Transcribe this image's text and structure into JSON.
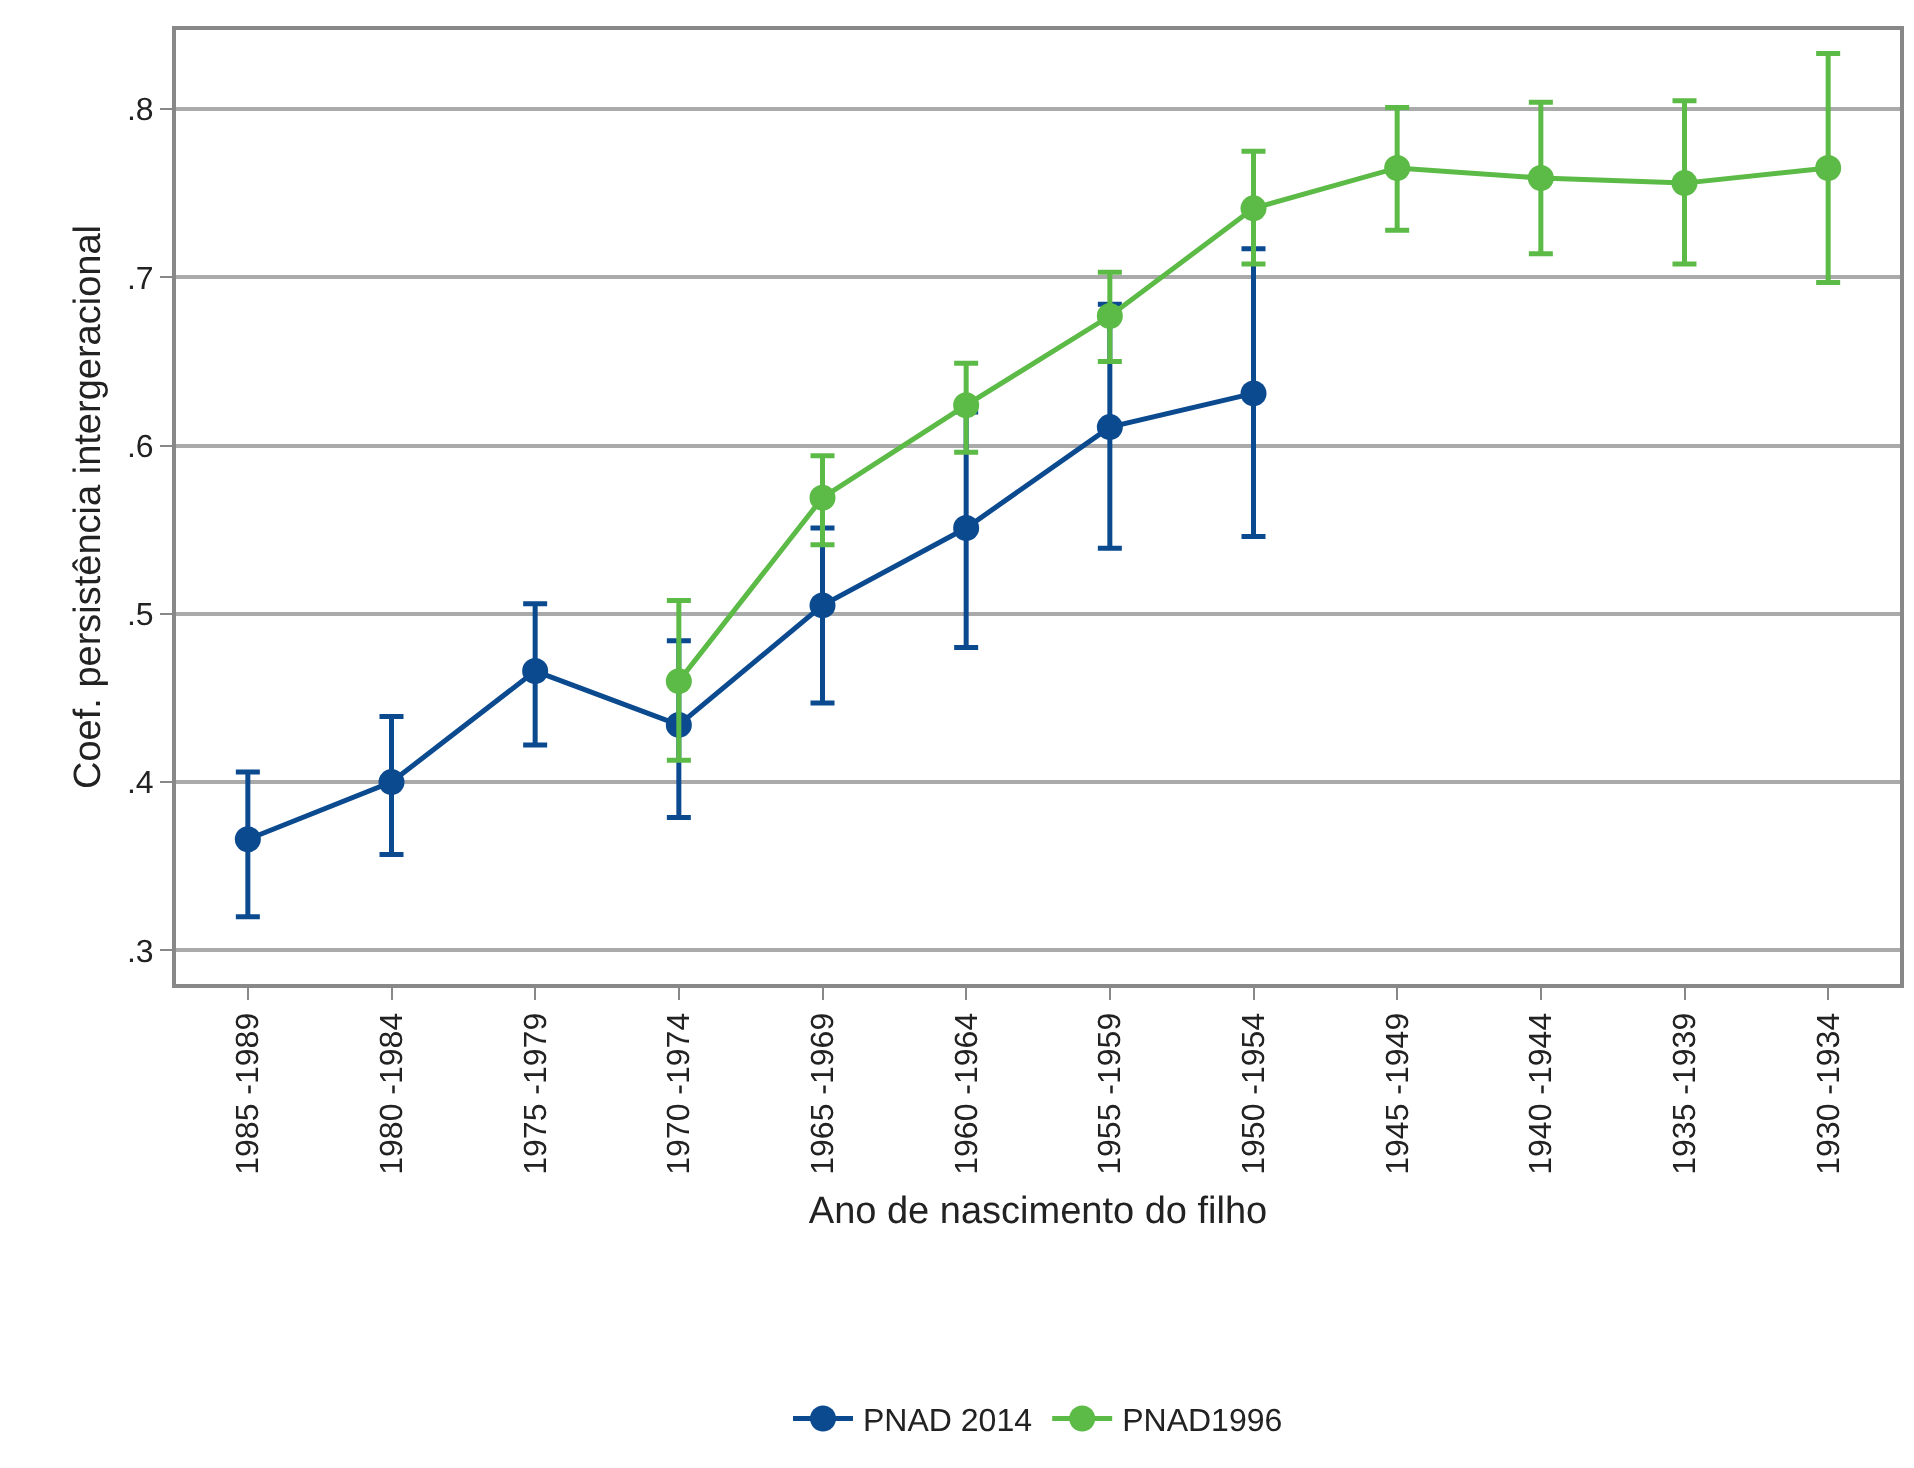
{
  "chart_data": {
    "type": "line",
    "xlabel": "Ano de nascimento do filho",
    "ylabel": "Coef. persistência intergeracional",
    "categories": [
      "1985 -1989",
      "1980 -1984",
      "1975 -1979",
      "1970 -1974",
      "1965 -1969",
      "1960 -1964",
      "1955 -1959",
      "1950 -1954",
      "1945 -1949",
      "1940 -1944",
      "1935 -1939",
      "1930 -1934"
    ],
    "series": [
      {
        "name": "PNAD 2014",
        "color": "#0b4a8f",
        "values": [
          0.366,
          0.4,
          0.466,
          0.434,
          0.505,
          0.551,
          0.611,
          0.631,
          null,
          null,
          null,
          null
        ],
        "errors": [
          [
            0.32,
            0.406
          ],
          [
            0.357,
            0.439
          ],
          [
            0.422,
            0.506
          ],
          [
            0.379,
            0.484
          ],
          [
            0.447,
            0.551
          ],
          [
            0.48,
            0.62
          ],
          [
            0.539,
            0.684
          ],
          [
            0.546,
            0.717
          ],
          null,
          null,
          null,
          null
        ]
      },
      {
        "name": "PNAD1996",
        "color": "#5cba47",
        "values": [
          null,
          null,
          null,
          0.46,
          0.569,
          0.624,
          0.677,
          0.741,
          0.765,
          0.759,
          0.756,
          0.765
        ],
        "errors": [
          null,
          null,
          null,
          [
            0.413,
            0.508
          ],
          [
            0.541,
            0.594
          ],
          [
            0.596,
            0.649
          ],
          [
            0.65,
            0.703
          ],
          [
            0.708,
            0.775
          ],
          [
            0.728,
            0.801
          ],
          [
            0.714,
            0.804
          ],
          [
            0.708,
            0.805
          ],
          [
            0.697,
            0.833
          ]
        ]
      }
    ],
    "ylim": [
      0.28,
      0.847
    ],
    "yticks": [
      {
        "value": 0.3,
        "label": ".3"
      },
      {
        "value": 0.4,
        "label": ".4"
      },
      {
        "value": 0.5,
        "label": ".5"
      },
      {
        "value": 0.6,
        "label": ".6"
      },
      {
        "value": 0.7,
        "label": ".7"
      },
      {
        "value": 0.8,
        "label": ".8"
      }
    ],
    "grid": "y",
    "legend": "bottom",
    "marker": "circle",
    "line_style": "solid"
  }
}
